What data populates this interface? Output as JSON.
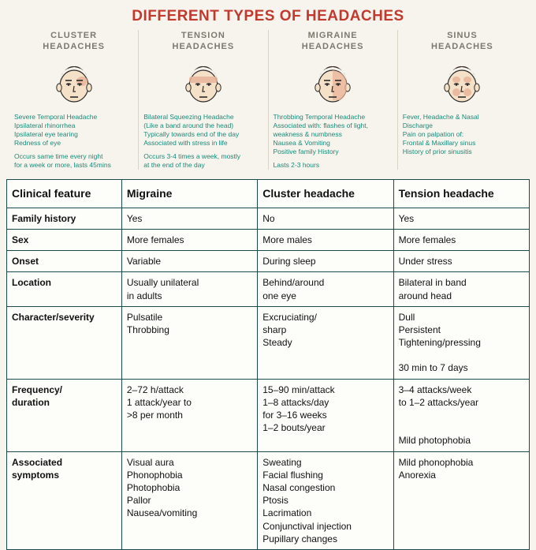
{
  "title": "DIFFERENT TYPES OF HEADACHES",
  "colors": {
    "title": "#c23a2e",
    "panel_heading": "#7a7a6e",
    "desc_text": "#1a8a7a",
    "table_border": "#1a4a4a",
    "background": "#f7f4ed",
    "hair": "#3a2e28",
    "skin": "#f5e0c8",
    "pain": "#e9b49a"
  },
  "panels": [
    {
      "heading": "CLUSTER\nHEADACHES",
      "pain_zone": "temporal_eye",
      "desc1": "Severe Temporal Headache\nIpsilateral rhinorrhea\nIpsilateral eye tearing\nRedness of eye",
      "desc2": "Occurs same time every night\nfor a week or more, lasts 45mins"
    },
    {
      "heading": "TENSION\nHEADACHES",
      "pain_zone": "band",
      "desc1": "Bilateral Squeezing Headache\n(Like a band around the head)\nTypically towards end of the day\nAssociated with stress in life",
      "desc2": "Occurs 3-4 times a week, mostly\nat the end of the day"
    },
    {
      "heading": "MIGRAINE\nHEADACHES",
      "pain_zone": "half",
      "desc1": "Throbbing Temporal Headache\nAssociated with: flashes of light,\nweakness & numbness\nNausea & Vomiting\nPositive family History",
      "desc2": "Lasts 2-3 hours"
    },
    {
      "heading": "SINUS\nHEADACHES",
      "pain_zone": "sinus",
      "desc1": "Fever, Headache & Nasal\nDischarge\nPain on palpation of:\nFrontal & Maxillary sinus\nHistory of prior sinusitis",
      "desc2": ""
    }
  ],
  "table": {
    "headers": [
      "Clinical feature",
      "Migraine",
      "Cluster headache",
      "Tension headache"
    ],
    "rows": [
      {
        "feature": "Family history",
        "cells": [
          "Yes",
          "No",
          "Yes"
        ]
      },
      {
        "feature": "Sex",
        "cells": [
          "More females",
          "More males",
          "More females"
        ]
      },
      {
        "feature": "Onset",
        "cells": [
          "Variable",
          "During sleep",
          "Under stress"
        ]
      },
      {
        "feature": "Location",
        "cells": [
          "Usually unilateral\nin adults",
          "Behind/around\none eye",
          "Bilateral in band\naround head"
        ]
      },
      {
        "feature": "Character/severity",
        "cells": [
          "Pulsatile\nThrobbing",
          "Excruciating/\nsharp\nSteady",
          "Dull\nPersistent  Tightening/pressing\n\n30 min to 7 days"
        ]
      },
      {
        "feature": "Frequency/\nduration",
        "cells": [
          "2–72 h/attack\n1 attack/year to\n>8 per month",
          "15–90 min/attack\n1–8 attacks/day\nfor 3–16 weeks\n1–2 bouts/year",
          "3–4 attacks/week\nto 1–2 attacks/year\n\n\nMild photophobia"
        ]
      },
      {
        "feature": "Associated\nsymptoms",
        "cells": [
          "Visual aura\nPhonophobia\nPhotophobia\nPallor\nNausea/vomiting",
          "Sweating\nFacial flushing\nNasal congestion\nPtosis\nLacrimation\nConjunctival injection\nPupillary changes",
          "Mild phonophobia\nAnorexia"
        ]
      }
    ]
  }
}
